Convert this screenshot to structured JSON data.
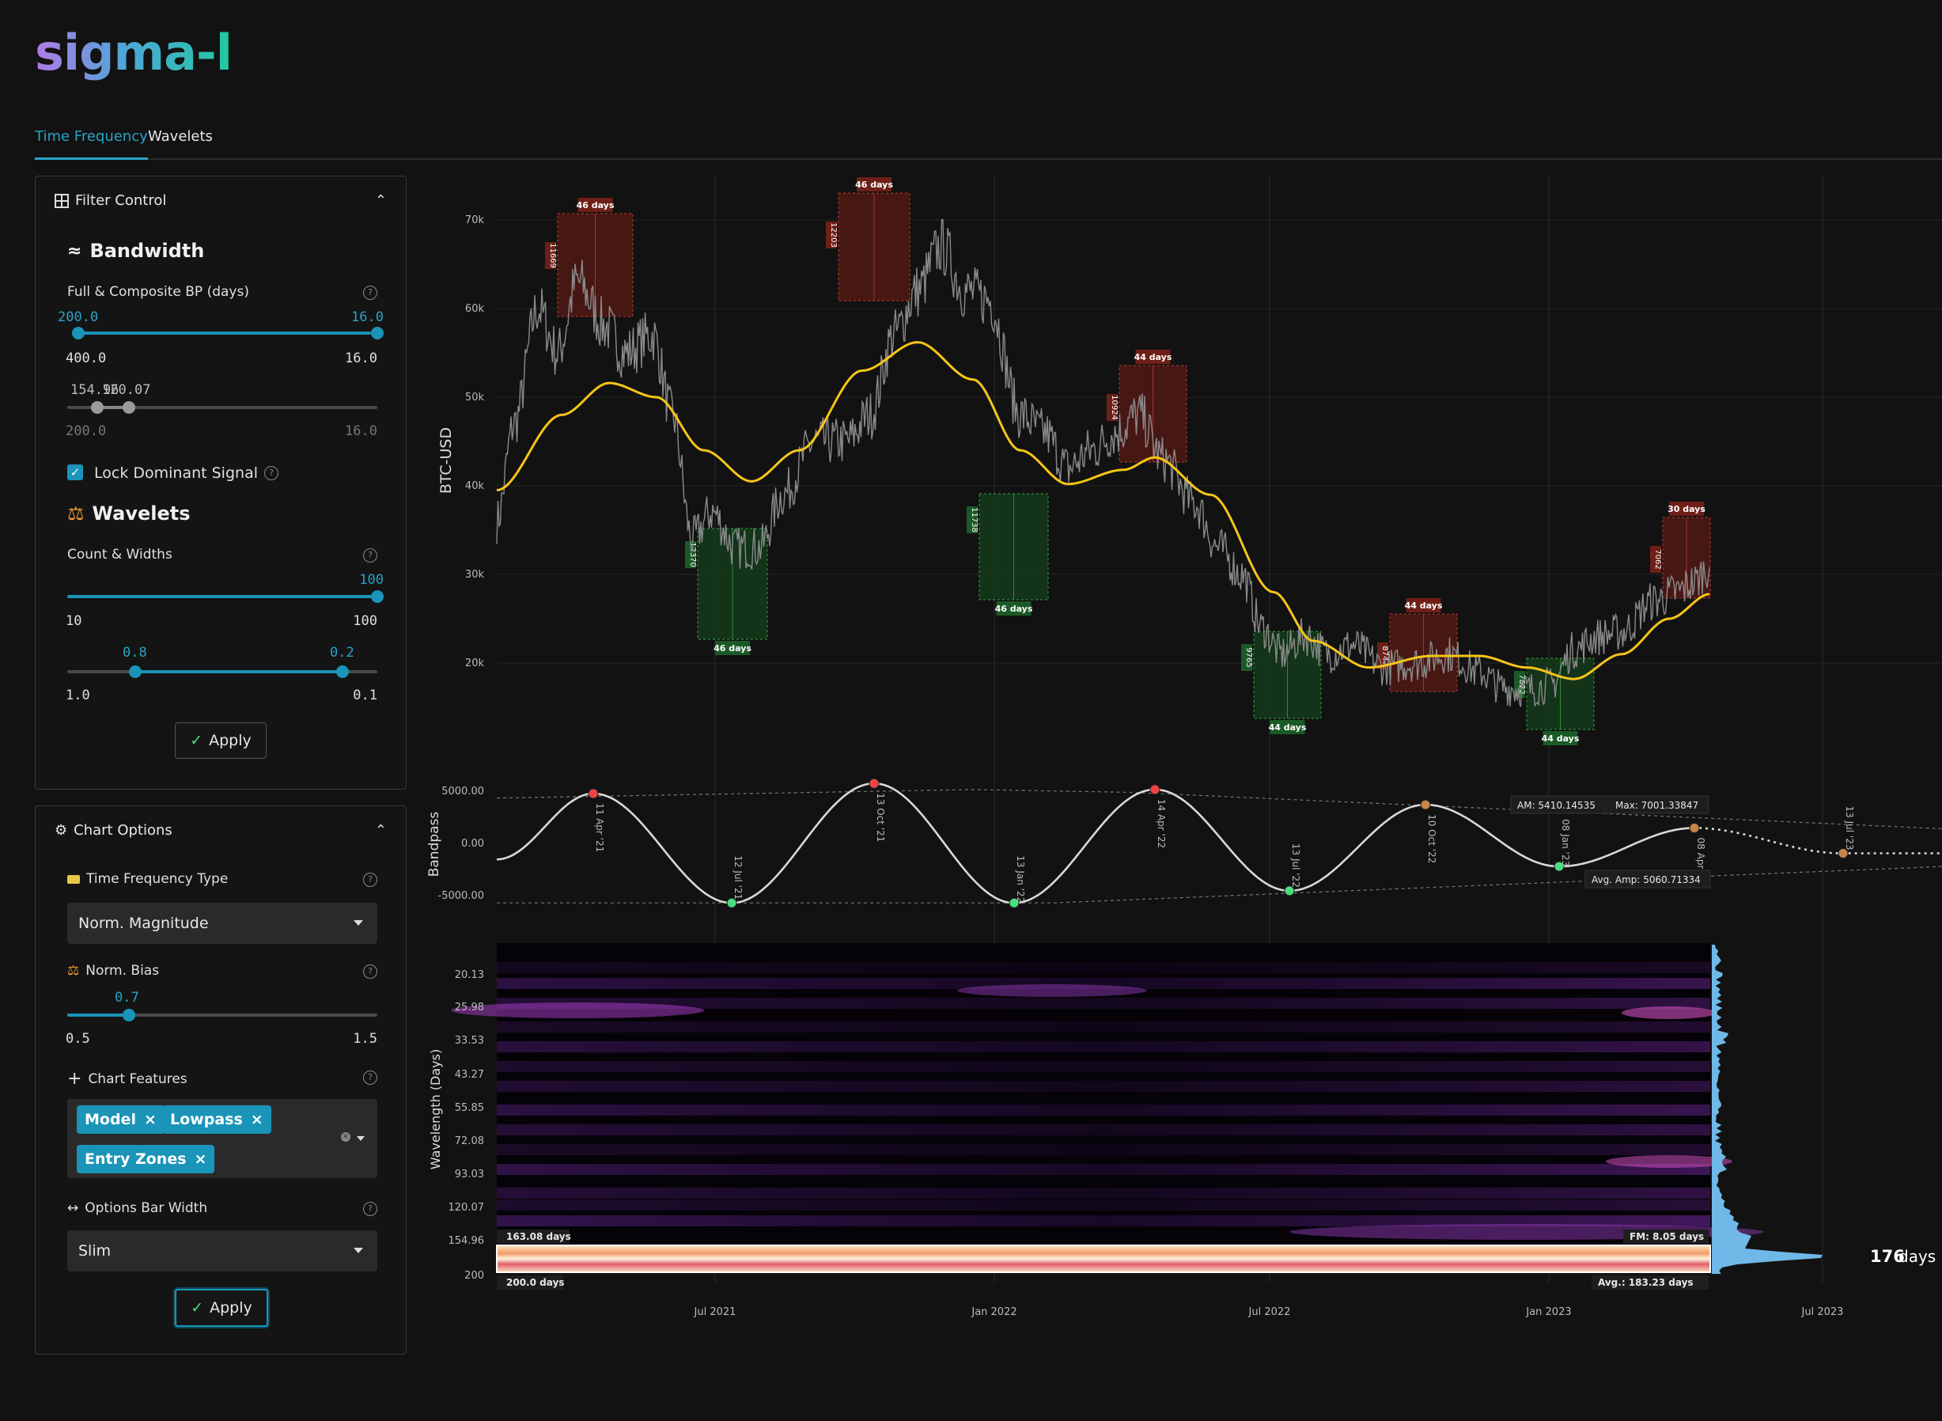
{
  "app": {
    "logo": "sigma-l"
  },
  "tabs": [
    {
      "label": "Time Frequency",
      "active": true
    },
    {
      "label": "Wavelets",
      "active": false
    }
  ],
  "colors": {
    "accent": "#1a94b8",
    "lowpass": "#f5c518",
    "peak": "#ef4444",
    "trough": "#4ade80",
    "projected": "#c8854a"
  },
  "filter_control": {
    "title": "Filter Control",
    "bandwidth": {
      "title": "Bandwidth",
      "bp_label": "Full & Composite BP (days)",
      "slider1": {
        "low_text": "200.0",
        "high_text": "16.0",
        "min_label": "400.0",
        "max_label": "16.0"
      },
      "slider2": {
        "overlap_text": "154.96",
        "overlap_text2": "120.07",
        "min_label": "200.0",
        "max_label": "16.0"
      }
    },
    "lock_label": "Lock Dominant Signal",
    "wavelets": {
      "title": "Wavelets",
      "count_label": "Count & Widths",
      "slider1": {
        "high_text": "100",
        "min_label": "10",
        "max_label": "100"
      },
      "slider2": {
        "low_text": "0.8",
        "high_text": "0.2",
        "min_label": "1.0",
        "max_label": "0.1"
      }
    },
    "apply_label": "Apply"
  },
  "chart_options": {
    "title": "Chart Options",
    "tf_type_label": "Time Frequency Type",
    "tf_type_value": "Norm. Magnitude",
    "norm_bias_label": "Norm. Bias",
    "norm_bias": {
      "value_text": "0.7",
      "min_label": "0.5",
      "max_label": "1.5"
    },
    "features_label": "Chart Features",
    "features": [
      "Model",
      "Lowpass",
      "Entry Zones"
    ],
    "bar_width_label": "Options Bar Width",
    "bar_width_value": "Slim",
    "apply_label": "Apply"
  },
  "chart_data": {
    "type": "line",
    "price_chart": {
      "ylabel": "BTC-USD",
      "y_ticks": [
        "70k",
        "60k",
        "50k",
        "40k",
        "30k",
        "20k"
      ],
      "zones": [
        {
          "kind": "high",
          "label": "46 days",
          "side_value": "11669"
        },
        {
          "kind": "low",
          "label": "46 days",
          "side_value": "12370"
        },
        {
          "kind": "high",
          "label": "46 days",
          "side_value": "12203"
        },
        {
          "kind": "low",
          "label": "46 days",
          "side_value": "11738"
        },
        {
          "kind": "high",
          "label": "44 days",
          "side_value": "10924"
        },
        {
          "kind": "low",
          "label": "44 days",
          "side_value": "9765"
        },
        {
          "kind": "high",
          "label": "44 days",
          "side_value": "8747"
        },
        {
          "kind": "low",
          "label": "44 days",
          "side_value": "7822"
        },
        {
          "kind": "high",
          "label": "30 days",
          "side_value": "7062"
        }
      ]
    },
    "bandpass_chart": {
      "ylabel": "Bandpass",
      "y_ticks": [
        "5000.00",
        "0.00",
        "-5000.00"
      ],
      "events": [
        {
          "date": "11 Apr '21",
          "kind": "peak"
        },
        {
          "date": "12 Jul '21",
          "kind": "trough"
        },
        {
          "date": "13 Oct '21",
          "kind": "peak"
        },
        {
          "date": "13 Jan '22",
          "kind": "trough"
        },
        {
          "date": "14 Apr '22",
          "kind": "peak"
        },
        {
          "date": "13 Jul '22",
          "kind": "trough"
        },
        {
          "date": "10 Oct '22",
          "kind": "peak"
        },
        {
          "date": "08 Jan '23",
          "kind": "trough"
        },
        {
          "date": "08 Apr '23",
          "kind": "peak"
        },
        {
          "date": "13 Jul '23",
          "kind": "trough"
        }
      ],
      "am_label": "AM: 5410.14535",
      "max_label": "Max: 7001.33847",
      "avg_amp_label": "Avg. Amp: 5060.71334"
    },
    "spectrogram": {
      "ylabel": "Wavelength (Days)",
      "y_ticks": [
        "20.13",
        "25.98",
        "33.53",
        "43.27",
        "55.85",
        "72.08",
        "93.03",
        "120.07",
        "154.96",
        "200"
      ],
      "top_bound_label": "163.08 days",
      "bottom_bound_label": "200.0 days",
      "fm_label": "FM: 8.05 days",
      "avg_label": "Avg.: 183.23 days",
      "dominant_label": "176",
      "dominant_unit": "days"
    },
    "x_ticks": [
      "Jul 2021",
      "Jan 2022",
      "Jul 2022",
      "Jan 2023",
      "Jul 2023"
    ]
  }
}
